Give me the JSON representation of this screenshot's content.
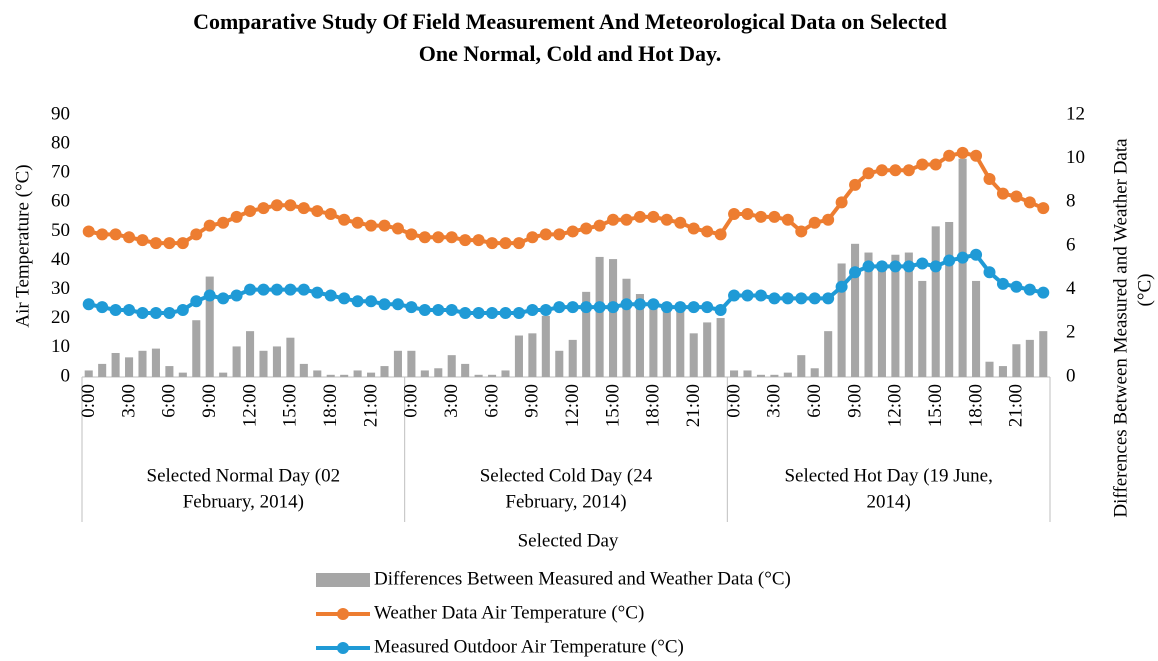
{
  "chart_data": {
    "type": "bar_line_combo",
    "title": [
      "Comparative Study Of Field Measurement And Meteorological Data on Selected",
      "One Normal, Cold and Hot Day."
    ],
    "x_label": "Selected Day",
    "y_label": "Air Temperature (°C)",
    "y2_label": [
      "Differences Between Measured and Weather Data",
      "(°C)"
    ],
    "categories": [
      "0:00",
      null,
      null,
      "3:00",
      null,
      null,
      "6:00",
      null,
      null,
      "9:00",
      null,
      null,
      "12:00",
      null,
      null,
      "15:00",
      null,
      null,
      "18:00",
      null,
      null,
      "21:00",
      null,
      null,
      "0:00",
      null,
      null,
      "3:00",
      null,
      null,
      "6:00",
      null,
      null,
      "9:00",
      null,
      null,
      "12:00",
      null,
      null,
      "15:00",
      null,
      null,
      "18:00",
      null,
      null,
      "21:00",
      null,
      null,
      "0:00",
      null,
      null,
      "3:00",
      null,
      null,
      "6:00",
      null,
      null,
      "9:00",
      null,
      null,
      "12:00",
      null,
      null,
      "15:00",
      null,
      null,
      "18:00",
      null,
      null,
      "21:00",
      null,
      null
    ],
    "groups": [
      [
        "Selected Normal Day (02",
        "February, 2014)"
      ],
      [
        "Selected Cold Day (24",
        "February, 2014)"
      ],
      [
        "Selected Hot Day (19 June,",
        "2014)"
      ]
    ],
    "series": [
      {
        "name": "Differences Between Measured and Weather Data (°C)",
        "kind": "bar",
        "axis": "y2",
        "color": "#a6a6a6",
        "values": [
          0.3,
          0.6,
          1.1,
          0.9,
          1.2,
          1.3,
          0.5,
          0.2,
          2.6,
          4.6,
          0.2,
          1.4,
          2.1,
          1.2,
          1.4,
          1.8,
          0.6,
          0.3,
          0.1,
          0.1,
          0.3,
          0.2,
          0.5,
          1.2,
          1.2,
          0.3,
          0.4,
          1.0,
          0.6,
          0.1,
          0.1,
          0.3,
          1.9,
          2.0,
          2.8,
          1.2,
          1.7,
          3.9,
          5.5,
          5.4,
          4.5,
          3.8,
          3.5,
          3.4,
          3.4,
          2.0,
          2.5,
          2.7,
          0.3,
          0.3,
          0.1,
          0.1,
          0.2,
          1.0,
          0.4,
          2.1,
          5.2,
          6.1,
          5.7,
          5.2,
          5.6,
          5.7,
          4.4,
          6.9,
          7.1,
          10.0,
          4.4,
          0.7,
          0.5,
          1.5,
          1.7,
          2.1
        ]
      },
      {
        "name": "Weather Data Air Temperature (°C)",
        "kind": "line",
        "color": "#ed7d31",
        "values": [
          50,
          49,
          49,
          48,
          47,
          46,
          46,
          46,
          49,
          52,
          53,
          55,
          57,
          58,
          59,
          59,
          58,
          57,
          56,
          54,
          53,
          52,
          52,
          51,
          49,
          48,
          48,
          48,
          47,
          47,
          46,
          46,
          46,
          48,
          49,
          49,
          50,
          51,
          52,
          54,
          54,
          55,
          55,
          54,
          53,
          51,
          50,
          49,
          56,
          56,
          55,
          55,
          54,
          50,
          53,
          54,
          60,
          66,
          70,
          71,
          71,
          71,
          73,
          73,
          76,
          77,
          76,
          68,
          63,
          62,
          60,
          58
        ]
      },
      {
        "name": "Measured Outdoor Air Temperature (°C)",
        "kind": "line",
        "color": "#1f9ad6",
        "values": [
          25,
          24,
          23,
          23,
          22,
          22,
          22,
          23,
          26,
          28,
          27,
          28,
          30,
          30,
          30,
          30,
          30,
          29,
          28,
          27,
          26,
          26,
          25,
          25,
          24,
          23,
          23,
          23,
          22,
          22,
          22,
          22,
          22,
          23,
          23,
          24,
          24,
          24,
          24,
          24,
          25,
          25,
          25,
          24,
          24,
          24,
          24,
          23,
          28,
          28,
          28,
          27,
          27,
          27,
          27,
          27,
          31,
          36,
          38,
          38,
          38,
          38,
          39,
          38,
          40,
          41,
          42,
          36,
          32,
          31,
          30,
          29
        ]
      }
    ],
    "ylim": [
      0,
      90
    ],
    "yticks": [
      0,
      10,
      20,
      30,
      40,
      50,
      60,
      70,
      80,
      90
    ],
    "y2lim": [
      0,
      12
    ],
    "y2ticks": [
      0,
      2,
      4,
      6,
      8,
      10,
      12
    ],
    "grid": false,
    "legend": "bottom"
  }
}
